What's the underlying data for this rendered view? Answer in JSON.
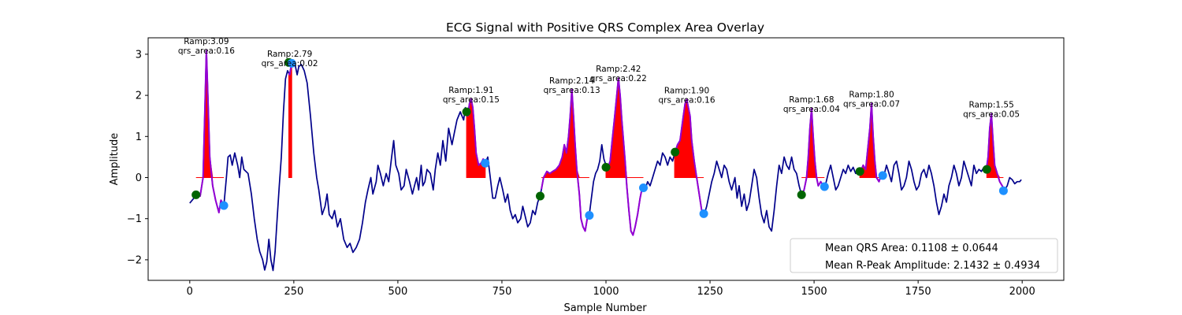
{
  "chart_data": {
    "type": "line",
    "title": "ECG Signal with Positive QRS Complex Area Overlay",
    "xlabel": "Sample Number",
    "ylabel": "Amplitude",
    "xlim": [
      -100,
      2100
    ],
    "ylim": [
      -2.5,
      3.4
    ],
    "xticks": [
      0,
      250,
      500,
      750,
      1000,
      1250,
      1500,
      1750,
      2000
    ],
    "yticks": [
      -2,
      -1,
      0,
      1,
      2,
      3
    ],
    "grid": false,
    "legend_position": "lower-right",
    "colors": {
      "signal": "#00008b",
      "qrs_segment": "#9400d3",
      "qrs_area": "#ff0000",
      "onset_marker": "#006400",
      "offset_marker": "#1e90ff"
    },
    "signal": [
      [
        0,
        -0.62
      ],
      [
        10,
        -0.5
      ],
      [
        15,
        -0.42
      ],
      [
        25,
        -0.45
      ],
      [
        32,
        0.0
      ],
      [
        36,
        1.5
      ],
      [
        40,
        3.09
      ],
      [
        44,
        1.8
      ],
      [
        48,
        0.5
      ],
      [
        55,
        -0.2
      ],
      [
        62,
        -0.55
      ],
      [
        70,
        -0.85
      ],
      [
        75,
        -0.55
      ],
      [
        82,
        -0.68
      ],
      [
        88,
        0.0
      ],
      [
        92,
        0.5
      ],
      [
        97,
        0.55
      ],
      [
        102,
        0.3
      ],
      [
        108,
        0.6
      ],
      [
        115,
        0.3
      ],
      [
        120,
        0.0
      ],
      [
        125,
        0.5
      ],
      [
        130,
        0.2
      ],
      [
        140,
        0.1
      ],
      [
        148,
        -0.4
      ],
      [
        155,
        -1.0
      ],
      [
        162,
        -1.5
      ],
      [
        168,
        -1.8
      ],
      [
        175,
        -2.0
      ],
      [
        180,
        -2.25
      ],
      [
        185,
        -2.05
      ],
      [
        190,
        -1.5
      ],
      [
        195,
        -2.0
      ],
      [
        200,
        -2.26
      ],
      [
        205,
        -1.8
      ],
      [
        210,
        -1.0
      ],
      [
        215,
        -0.2
      ],
      [
        220,
        0.5
      ],
      [
        225,
        1.6
      ],
      [
        230,
        2.4
      ],
      [
        235,
        2.6
      ],
      [
        240,
        2.5
      ],
      [
        245,
        2.8
      ],
      [
        252,
        2.8
      ],
      [
        258,
        2.5
      ],
      [
        262,
        2.7
      ],
      [
        268,
        2.75
      ],
      [
        275,
        2.6
      ],
      [
        282,
        2.3
      ],
      [
        290,
        1.5
      ],
      [
        298,
        0.6
      ],
      [
        305,
        0.0
      ],
      [
        310,
        -0.3
      ],
      [
        318,
        -0.9
      ],
      [
        325,
        -0.7
      ],
      [
        330,
        -0.4
      ],
      [
        335,
        -0.9
      ],
      [
        342,
        -1.0
      ],
      [
        348,
        -0.8
      ],
      [
        355,
        -1.2
      ],
      [
        362,
        -1.0
      ],
      [
        370,
        -1.5
      ],
      [
        378,
        -1.7
      ],
      [
        385,
        -1.6
      ],
      [
        392,
        -1.82
      ],
      [
        400,
        -1.7
      ],
      [
        408,
        -1.5
      ],
      [
        415,
        -1.1
      ],
      [
        422,
        -0.6
      ],
      [
        428,
        -0.3
      ],
      [
        435,
        0.0
      ],
      [
        440,
        -0.4
      ],
      [
        448,
        -0.1
      ],
      [
        452,
        0.3
      ],
      [
        458,
        0.1
      ],
      [
        465,
        -0.2
      ],
      [
        472,
        0.1
      ],
      [
        478,
        -0.1
      ],
      [
        485,
        0.5
      ],
      [
        490,
        0.9
      ],
      [
        495,
        0.3
      ],
      [
        502,
        0.1
      ],
      [
        508,
        -0.3
      ],
      [
        515,
        -0.2
      ],
      [
        520,
        0.2
      ],
      [
        528,
        -0.1
      ],
      [
        535,
        -0.4
      ],
      [
        540,
        -0.2
      ],
      [
        545,
        0.0
      ],
      [
        550,
        -0.3
      ],
      [
        556,
        0.3
      ],
      [
        560,
        -0.2
      ],
      [
        565,
        -0.1
      ],
      [
        570,
        0.2
      ],
      [
        578,
        0.1
      ],
      [
        585,
        -0.3
      ],
      [
        590,
        0.2
      ],
      [
        596,
        0.6
      ],
      [
        602,
        0.3
      ],
      [
        608,
        0.9
      ],
      [
        615,
        0.4
      ],
      [
        622,
        1.2
      ],
      [
        630,
        0.8
      ],
      [
        636,
        1.1
      ],
      [
        642,
        1.4
      ],
      [
        650,
        1.6
      ],
      [
        658,
        1.4
      ],
      [
        662,
        1.7
      ],
      [
        668,
        1.5
      ],
      [
        672,
        1.8
      ],
      [
        676,
        1.91
      ],
      [
        680,
        1.7
      ],
      [
        684,
        1.2
      ],
      [
        688,
        0.6
      ],
      [
        694,
        0.3
      ],
      [
        700,
        0.35
      ],
      [
        705,
        0.45
      ],
      [
        710,
        0.35
      ],
      [
        716,
        0.5
      ],
      [
        722,
        0.0
      ],
      [
        728,
        -0.5
      ],
      [
        734,
        -0.5
      ],
      [
        740,
        -0.2
      ],
      [
        745,
        0.0
      ],
      [
        752,
        -0.3
      ],
      [
        758,
        -0.6
      ],
      [
        764,
        -0.4
      ],
      [
        770,
        -0.8
      ],
      [
        776,
        -1.0
      ],
      [
        782,
        -0.9
      ],
      [
        788,
        -1.1
      ],
      [
        795,
        -1.0
      ],
      [
        800,
        -0.7
      ],
      [
        805,
        -0.9
      ],
      [
        812,
        -1.2
      ],
      [
        818,
        -1.1
      ],
      [
        824,
        -0.8
      ],
      [
        830,
        -0.9
      ],
      [
        836,
        -0.6
      ],
      [
        842,
        -0.45
      ],
      [
        850,
        0.0
      ],
      [
        858,
        0.15
      ],
      [
        865,
        0.1
      ],
      [
        872,
        0.15
      ],
      [
        880,
        0.2
      ],
      [
        888,
        0.3
      ],
      [
        895,
        0.5
      ],
      [
        900,
        0.8
      ],
      [
        905,
        0.6
      ],
      [
        910,
        1.0
      ],
      [
        914,
        1.5
      ],
      [
        918,
        2.15
      ],
      [
        922,
        1.5
      ],
      [
        926,
        0.8
      ],
      [
        930,
        0.2
      ],
      [
        936,
        -0.4
      ],
      [
        940,
        -1.0
      ],
      [
        945,
        -1.2
      ],
      [
        950,
        -1.3
      ],
      [
        955,
        -1.0
      ],
      [
        960,
        -0.9
      ],
      [
        965,
        -0.5
      ],
      [
        970,
        -0.1
      ],
      [
        975,
        0.1
      ],
      [
        980,
        0.2
      ],
      [
        985,
        0.4
      ],
      [
        990,
        0.8
      ],
      [
        995,
        0.45
      ],
      [
        1000,
        0.3
      ],
      [
        1005,
        0.25
      ],
      [
        1010,
        0.4
      ],
      [
        1015,
        0.9
      ],
      [
        1020,
        1.4
      ],
      [
        1025,
        1.9
      ],
      [
        1030,
        2.42
      ],
      [
        1034,
        2.0
      ],
      [
        1038,
        1.4
      ],
      [
        1042,
        0.9
      ],
      [
        1046,
        0.4
      ],
      [
        1050,
        -0.2
      ],
      [
        1055,
        -0.8
      ],
      [
        1060,
        -1.3
      ],
      [
        1065,
        -1.4
      ],
      [
        1070,
        -1.2
      ],
      [
        1076,
        -0.9
      ],
      [
        1082,
        -0.5
      ],
      [
        1088,
        -0.2
      ],
      [
        1094,
        -0.3
      ],
      [
        1100,
        -0.1
      ],
      [
        1106,
        -0.2
      ],
      [
        1112,
        0.0
      ],
      [
        1118,
        0.2
      ],
      [
        1124,
        0.4
      ],
      [
        1130,
        0.3
      ],
      [
        1136,
        0.6
      ],
      [
        1142,
        0.5
      ],
      [
        1148,
        0.3
      ],
      [
        1154,
        0.5
      ],
      [
        1160,
        0.4
      ],
      [
        1166,
        0.62
      ],
      [
        1172,
        0.8
      ],
      [
        1178,
        0.9
      ],
      [
        1182,
        1.2
      ],
      [
        1186,
        1.5
      ],
      [
        1190,
        1.8
      ],
      [
        1194,
        1.9
      ],
      [
        1198,
        1.7
      ],
      [
        1202,
        1.5
      ],
      [
        1206,
        0.9
      ],
      [
        1212,
        0.4
      ],
      [
        1218,
        0.0
      ],
      [
        1224,
        -0.4
      ],
      [
        1230,
        -0.8
      ],
      [
        1236,
        -0.9
      ],
      [
        1242,
        -0.7
      ],
      [
        1248,
        -0.4
      ],
      [
        1254,
        -0.1
      ],
      [
        1260,
        0.1
      ],
      [
        1266,
        0.4
      ],
      [
        1272,
        0.2
      ],
      [
        1278,
        0.0
      ],
      [
        1284,
        0.3
      ],
      [
        1290,
        0.2
      ],
      [
        1296,
        -0.1
      ],
      [
        1302,
        -0.3
      ],
      [
        1310,
        0.0
      ],
      [
        1315,
        -0.5
      ],
      [
        1320,
        -0.2
      ],
      [
        1326,
        -0.7
      ],
      [
        1332,
        -0.4
      ],
      [
        1338,
        -0.8
      ],
      [
        1344,
        -0.6
      ],
      [
        1350,
        -0.2
      ],
      [
        1356,
        0.2
      ],
      [
        1362,
        0.0
      ],
      [
        1368,
        -0.5
      ],
      [
        1374,
        -0.9
      ],
      [
        1380,
        -1.1
      ],
      [
        1386,
        -0.8
      ],
      [
        1392,
        -1.2
      ],
      [
        1398,
        -1.3
      ],
      [
        1404,
        -0.8
      ],
      [
        1410,
        -0.2
      ],
      [
        1416,
        0.3
      ],
      [
        1422,
        0.1
      ],
      [
        1428,
        0.5
      ],
      [
        1434,
        0.3
      ],
      [
        1440,
        0.2
      ],
      [
        1446,
        0.5
      ],
      [
        1452,
        0.2
      ],
      [
        1458,
        0.1
      ],
      [
        1464,
        -0.2
      ],
      [
        1470,
        -0.42
      ],
      [
        1476,
        -0.3
      ],
      [
        1482,
        0.0
      ],
      [
        1486,
        0.5
      ],
      [
        1490,
        1.2
      ],
      [
        1494,
        1.68
      ],
      [
        1498,
        1.0
      ],
      [
        1502,
        0.4
      ],
      [
        1506,
        0.0
      ],
      [
        1510,
        -0.2
      ],
      [
        1516,
        -0.1
      ],
      [
        1522,
        -0.2
      ],
      [
        1528,
        -0.15
      ],
      [
        1534,
        0.1
      ],
      [
        1540,
        0.3
      ],
      [
        1546,
        0.0
      ],
      [
        1552,
        -0.3
      ],
      [
        1558,
        -0.2
      ],
      [
        1564,
        0.0
      ],
      [
        1570,
        0.2
      ],
      [
        1576,
        0.1
      ],
      [
        1582,
        0.3
      ],
      [
        1588,
        0.15
      ],
      [
        1594,
        0.25
      ],
      [
        1600,
        0.1
      ],
      [
        1606,
        0.2
      ],
      [
        1612,
        0.15
      ],
      [
        1618,
        0.3
      ],
      [
        1624,
        0.2
      ],
      [
        1628,
        0.6
      ],
      [
        1634,
        1.2
      ],
      [
        1638,
        1.8
      ],
      [
        1642,
        1.0
      ],
      [
        1646,
        0.4
      ],
      [
        1650,
        0.0
      ],
      [
        1656,
        -0.1
      ],
      [
        1662,
        0.1
      ],
      [
        1668,
        0.05
      ],
      [
        1674,
        0.3
      ],
      [
        1680,
        0.1
      ],
      [
        1686,
        -0.1
      ],
      [
        1692,
        0.3
      ],
      [
        1698,
        0.4
      ],
      [
        1704,
        0.1
      ],
      [
        1710,
        -0.3
      ],
      [
        1716,
        -0.2
      ],
      [
        1722,
        0.0
      ],
      [
        1728,
        0.4
      ],
      [
        1734,
        0.2
      ],
      [
        1740,
        -0.1
      ],
      [
        1746,
        -0.3
      ],
      [
        1752,
        -0.2
      ],
      [
        1758,
        0.1
      ],
      [
        1764,
        0.2
      ],
      [
        1770,
        0.0
      ],
      [
        1776,
        0.3
      ],
      [
        1782,
        0.1
      ],
      [
        1788,
        -0.2
      ],
      [
        1794,
        -0.6
      ],
      [
        1800,
        -0.9
      ],
      [
        1806,
        -0.7
      ],
      [
        1812,
        -0.4
      ],
      [
        1818,
        -0.6
      ],
      [
        1824,
        -0.2
      ],
      [
        1830,
        0.0
      ],
      [
        1836,
        0.3
      ],
      [
        1842,
        0.1
      ],
      [
        1848,
        -0.2
      ],
      [
        1854,
        0.0
      ],
      [
        1860,
        0.4
      ],
      [
        1866,
        0.2
      ],
      [
        1872,
        0.0
      ],
      [
        1878,
        -0.2
      ],
      [
        1884,
        0.3
      ],
      [
        1890,
        0.1
      ],
      [
        1896,
        0.2
      ],
      [
        1902,
        0.15
      ],
      [
        1908,
        0.25
      ],
      [
        1914,
        0.2
      ],
      [
        1918,
        0.5
      ],
      [
        1922,
        1.2
      ],
      [
        1926,
        1.55
      ],
      [
        1930,
        0.9
      ],
      [
        1934,
        0.3
      ],
      [
        1940,
        0.1
      ],
      [
        1946,
        -0.1
      ],
      [
        1952,
        -0.2
      ],
      [
        1958,
        -0.3
      ],
      [
        1964,
        -0.2
      ],
      [
        1970,
        0.0
      ],
      [
        1976,
        -0.05
      ],
      [
        1982,
        -0.15
      ],
      [
        1988,
        -0.1
      ],
      [
        1994,
        -0.1
      ],
      [
        1998,
        -0.05
      ]
    ],
    "qrs_windows": [
      [
        15,
        82
      ],
      [
        238,
        245
      ],
      [
        665,
        710
      ],
      [
        845,
        960
      ],
      [
        1000,
        1090
      ],
      [
        1165,
        1235
      ],
      [
        1470,
        1525
      ],
      [
        1610,
        1665
      ],
      [
        1915,
        1955
      ]
    ],
    "onset_markers": [
      [
        15,
        -0.42
      ],
      [
        238,
        2.8
      ],
      [
        665,
        1.6
      ],
      [
        842,
        -0.45
      ],
      [
        1000,
        0.25
      ],
      [
        1166,
        0.62
      ],
      [
        1470,
        -0.42
      ],
      [
        1610,
        0.15
      ],
      [
        1915,
        0.2
      ]
    ],
    "offset_markers": [
      [
        82,
        -0.68
      ],
      [
        245,
        2.78
      ],
      [
        710,
        0.35
      ],
      [
        960,
        -0.92
      ],
      [
        1090,
        -0.25
      ],
      [
        1235,
        -0.88
      ],
      [
        1525,
        -0.22
      ],
      [
        1665,
        0.05
      ],
      [
        1955,
        -0.32
      ]
    ],
    "annotations": [
      {
        "x": 40,
        "y": 3.09,
        "ramp": "Ramp:3.09",
        "area": "qrs_area:0.16"
      },
      {
        "x": 240,
        "y": 2.79,
        "ramp": "Ramp:2.79",
        "area": "qrs_area:0.02"
      },
      {
        "x": 676,
        "y": 1.91,
        "ramp": "Ramp:1.91",
        "area": "qrs_area:0.15"
      },
      {
        "x": 918,
        "y": 2.14,
        "ramp": "Ramp:2.14",
        "area": "qrs_area:0.13"
      },
      {
        "x": 1030,
        "y": 2.42,
        "ramp": "Ramp:2.42",
        "area": "qrs_area:0.22"
      },
      {
        "x": 1194,
        "y": 1.9,
        "ramp": "Ramp:1.90",
        "area": "qrs_area:0.16"
      },
      {
        "x": 1494,
        "y": 1.68,
        "ramp": "Ramp:1.68",
        "area": "qrs_area:0.04"
      },
      {
        "x": 1638,
        "y": 1.8,
        "ramp": "Ramp:1.80",
        "area": "qrs_area:0.07"
      },
      {
        "x": 1926,
        "y": 1.55,
        "ramp": "Ramp:1.55",
        "area": "qrs_area:0.05"
      }
    ],
    "legend": [
      "Mean QRS Area: 0.1108 ± 0.0644",
      "Mean R-Peak Amplitude: 2.1432 ± 0.4934"
    ]
  }
}
